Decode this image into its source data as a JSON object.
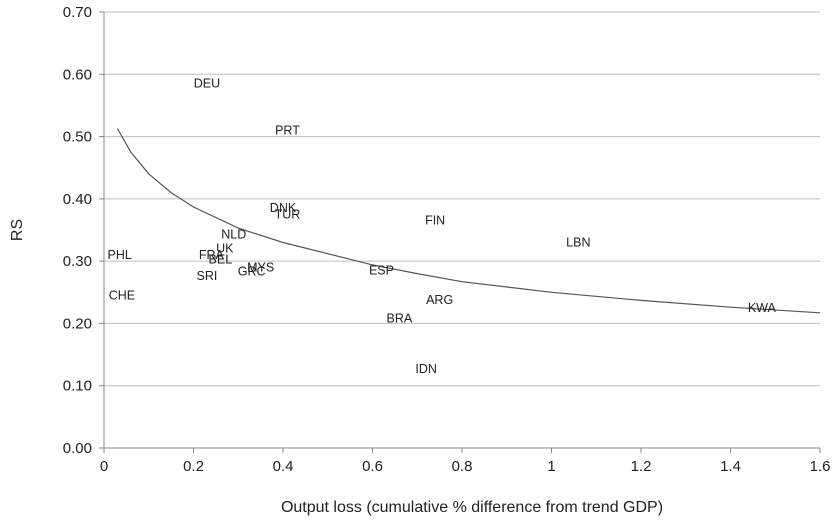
{
  "chart_data": {
    "type": "scatter",
    "title": "",
    "xlabel": "Output loss (cumulative % difference from trend GDP)",
    "ylabel": "RS",
    "xlim": [
      0,
      1.6
    ],
    "ylim": [
      0,
      0.7
    ],
    "x_ticks": [
      "0",
      "0.2",
      "0.4",
      "0.6",
      "0.8",
      "1",
      "1.2",
      "1.4",
      "1.6"
    ],
    "y_ticks": [
      "0.00",
      "0.10",
      "0.20",
      "0.30",
      "0.40",
      "0.50",
      "0.60",
      "0.70"
    ],
    "grid": "horizontal",
    "points": [
      {
        "label": "DEU",
        "x": 0.23,
        "y": 0.585
      },
      {
        "label": "PRT",
        "x": 0.41,
        "y": 0.51
      },
      {
        "label": "DNK",
        "x": 0.4,
        "y": 0.385
      },
      {
        "label": "TUR",
        "x": 0.41,
        "y": 0.375
      },
      {
        "label": "FIN",
        "x": 0.74,
        "y": 0.365
      },
      {
        "label": "NLD",
        "x": 0.29,
        "y": 0.343
      },
      {
        "label": "LBN",
        "x": 1.06,
        "y": 0.33
      },
      {
        "label": "UK",
        "x": 0.27,
        "y": 0.32
      },
      {
        "label": "FRA",
        "x": 0.24,
        "y": 0.31
      },
      {
        "label": "BEL",
        "x": 0.26,
        "y": 0.303
      },
      {
        "label": "PHL",
        "x": 0.035,
        "y": 0.31
      },
      {
        "label": "MYS",
        "x": 0.35,
        "y": 0.29
      },
      {
        "label": "GRC",
        "x": 0.33,
        "y": 0.283
      },
      {
        "label": "ESP",
        "x": 0.62,
        "y": 0.285
      },
      {
        "label": "SRI",
        "x": 0.23,
        "y": 0.276
      },
      {
        "label": "CHE",
        "x": 0.04,
        "y": 0.245
      },
      {
        "label": "ARG",
        "x": 0.75,
        "y": 0.238
      },
      {
        "label": "KWA",
        "x": 1.47,
        "y": 0.225
      },
      {
        "label": "BRA",
        "x": 0.66,
        "y": 0.208
      },
      {
        "label": "IDN",
        "x": 0.72,
        "y": 0.127
      }
    ],
    "trendline": {
      "x": [
        0.03,
        0.06,
        0.1,
        0.15,
        0.2,
        0.3,
        0.4,
        0.5,
        0.6,
        0.7,
        0.8,
        1.0,
        1.2,
        1.4,
        1.6
      ],
      "y": [
        0.513,
        0.475,
        0.44,
        0.41,
        0.387,
        0.353,
        0.33,
        0.312,
        0.294,
        0.28,
        0.267,
        0.25,
        0.237,
        0.226,
        0.217
      ]
    }
  }
}
